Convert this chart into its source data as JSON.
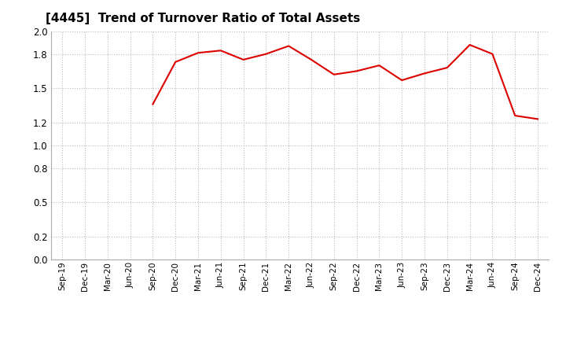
{
  "title": "[4445]  Trend of Turnover Ratio of Total Assets",
  "line_color": "#dd0000",
  "background_color": "#ffffff",
  "grid_color": "#bbbbbb",
  "ylim": [
    0.0,
    2.0
  ],
  "yticks": [
    0.0,
    0.2,
    0.5,
    0.8,
    1.0,
    1.2,
    1.5,
    1.8,
    2.0
  ],
  "labels": [
    "Sep-19",
    "Dec-19",
    "Mar-20",
    "Jun-20",
    "Sep-20",
    "Dec-20",
    "Mar-21",
    "Jun-21",
    "Sep-21",
    "Dec-21",
    "Mar-22",
    "Jun-22",
    "Sep-22",
    "Dec-22",
    "Mar-23",
    "Jun-23",
    "Sep-23",
    "Dec-23",
    "Mar-24",
    "Jun-24",
    "Sep-24",
    "Dec-24"
  ],
  "values": [
    null,
    null,
    null,
    null,
    1.36,
    1.73,
    1.81,
    1.83,
    1.75,
    1.8,
    1.87,
    1.75,
    1.62,
    1.65,
    1.7,
    1.57,
    1.63,
    1.68,
    1.88,
    1.8,
    1.26,
    1.23
  ],
  "title_fontsize": 11,
  "xlabel_fontsize": 7.5,
  "ylabel_fontsize": 8.5
}
